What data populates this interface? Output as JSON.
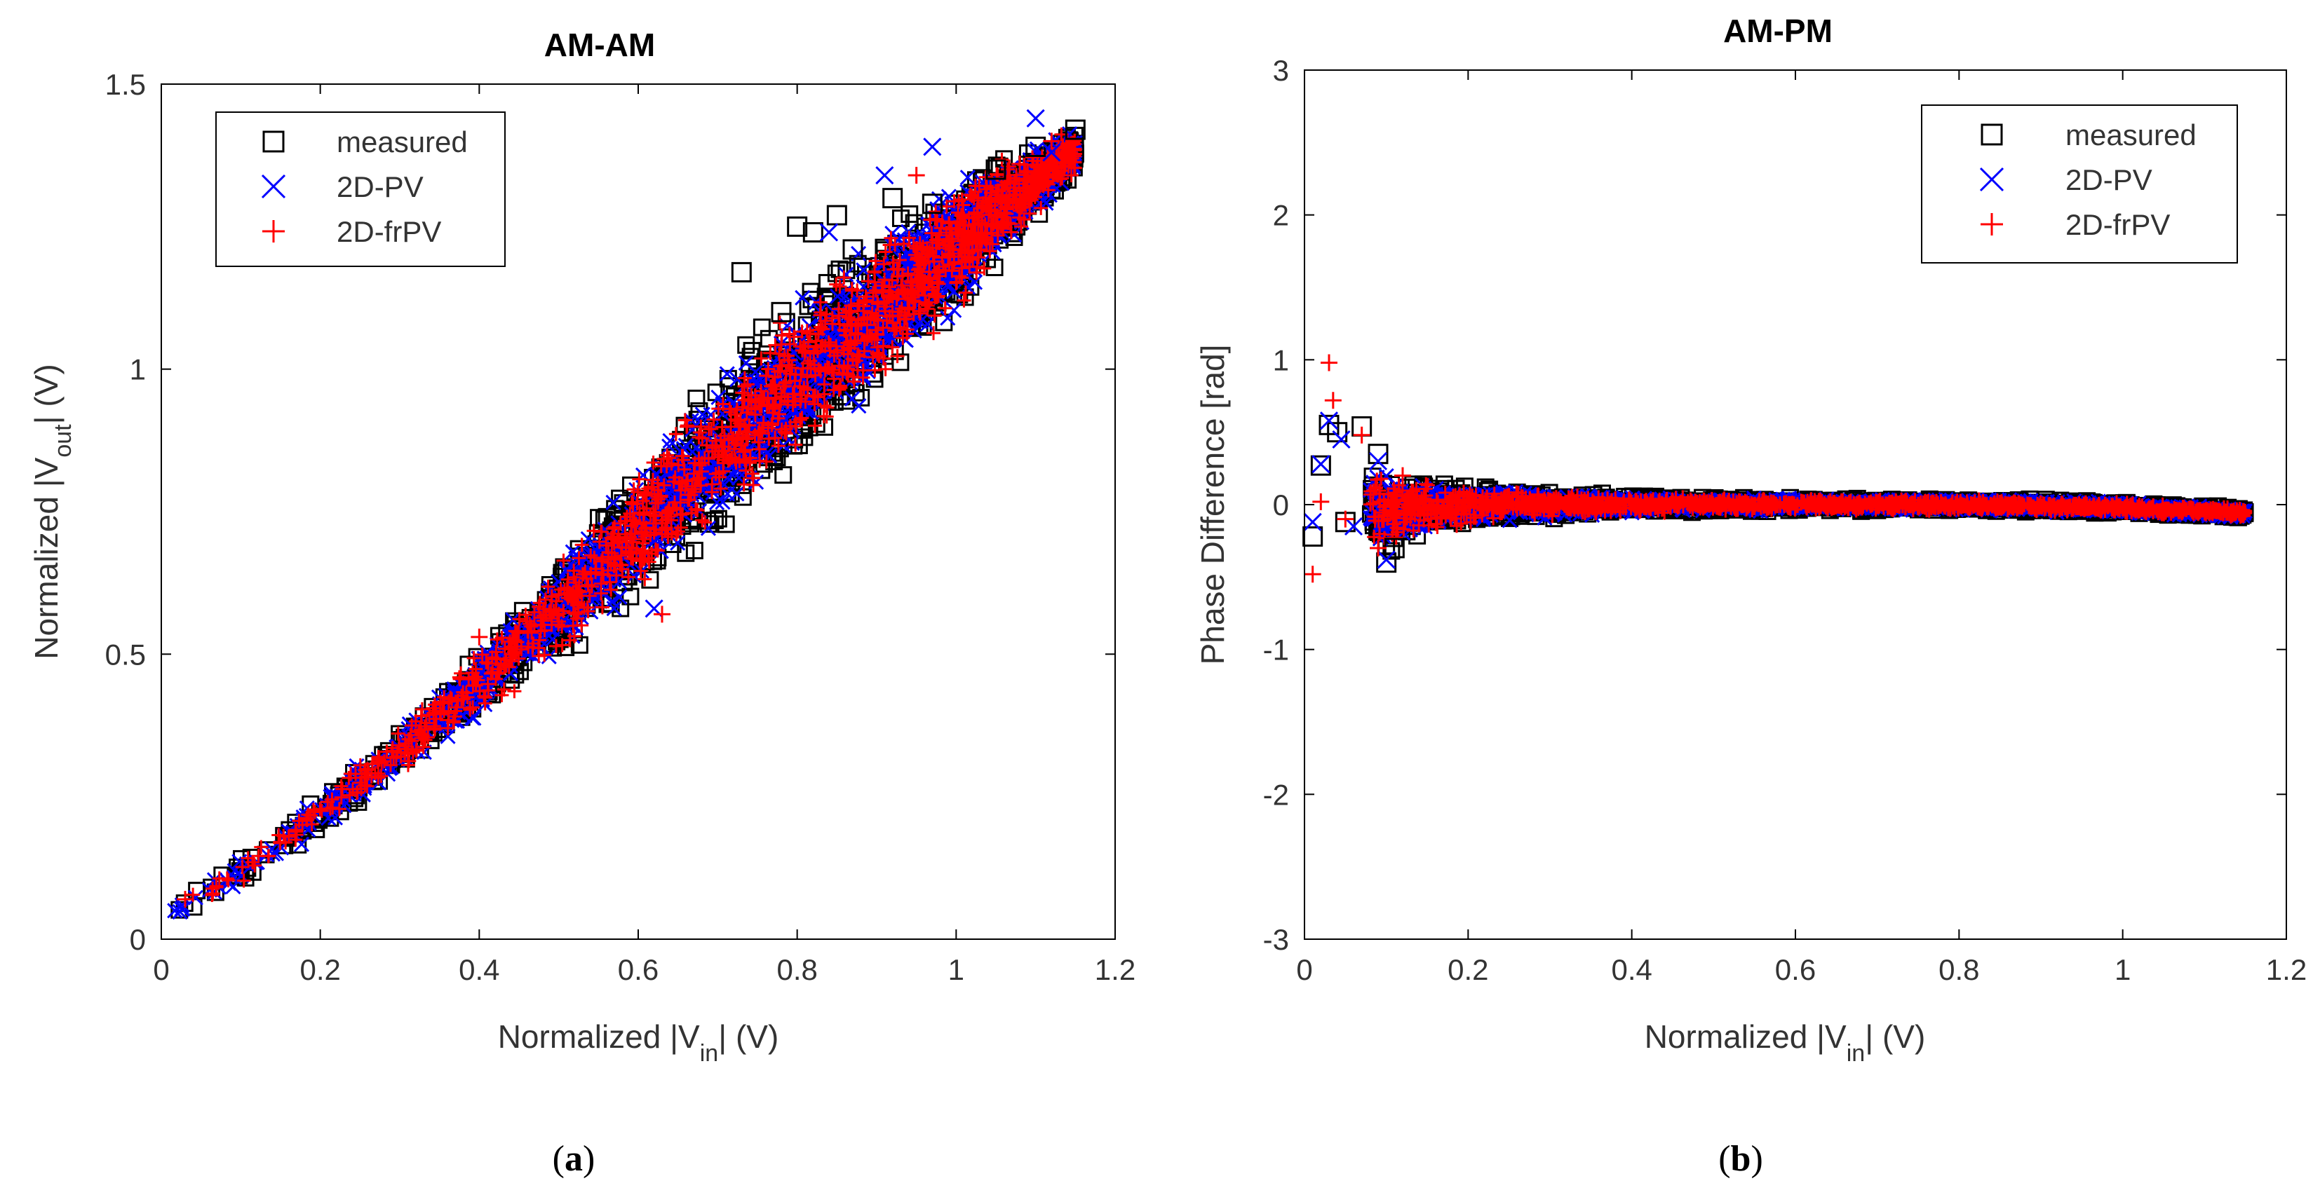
{
  "chart_data": [
    {
      "id": "a",
      "type": "scatter",
      "title": "AM-AM",
      "xlabel": {
        "prefix": "Normalized |V",
        "sub": "in",
        "suffix": "| (V)"
      },
      "ylabel": {
        "prefix": "Normalized |V",
        "sub": "out",
        "suffix": "| (V)"
      },
      "xlim": [
        0,
        1.2
      ],
      "ylim": [
        0,
        1.5
      ],
      "xticks": [
        0,
        0.2,
        0.4,
        0.6,
        0.8,
        1,
        1.2
      ],
      "yticks": [
        0,
        0.5,
        1,
        1.5
      ],
      "xtick_labels": [
        "0",
        "0.2",
        "0.4",
        "0.6",
        "0.8",
        "1",
        "1.2"
      ],
      "ytick_labels": [
        "0",
        "0.5",
        "1",
        "1.5"
      ],
      "legend_position": "top-left",
      "legend": [
        {
          "label": "measured",
          "marker": "square",
          "color": "#000000"
        },
        {
          "label": "2D-PV",
          "marker": "x",
          "color": "#0000ff"
        },
        {
          "label": "2D-frPV",
          "marker": "plus",
          "color": "#ff0000"
        }
      ],
      "trend": {
        "x": [
          0.0,
          0.1,
          0.2,
          0.3,
          0.4,
          0.5,
          0.6,
          0.7,
          0.8,
          0.9,
          1.0,
          1.1,
          1.15
        ],
        "y_center": [
          0.03,
          0.12,
          0.22,
          0.33,
          0.45,
          0.58,
          0.72,
          0.85,
          0.98,
          1.1,
          1.22,
          1.33,
          1.38
        ],
        "y_spread": [
          0.02,
          0.03,
          0.04,
          0.05,
          0.07,
          0.1,
          0.13,
          0.16,
          0.17,
          0.16,
          0.13,
          0.07,
          0.05
        ]
      },
      "series": [
        {
          "name": "measured",
          "x": [
            0.73,
            0.8,
            0.82,
            0.85,
            0.92,
            0.97,
            1.05,
            1.1,
            1.15,
            0.87,
            0.78
          ],
          "y": [
            1.17,
            1.25,
            1.24,
            1.27,
            1.3,
            1.29,
            1.35,
            1.39,
            1.42,
            1.21,
            1.1
          ]
        },
        {
          "name": "2D-PV",
          "x": [
            0.84,
            0.91,
            0.97,
            1.1,
            1.12,
            0.62
          ],
          "y": [
            1.24,
            1.34,
            1.39,
            1.44,
            1.38,
            0.58
          ]
        },
        {
          "name": "2D-frPV",
          "x": [
            0.63,
            0.4,
            0.95,
            1.08,
            1.12,
            0.03
          ],
          "y": [
            0.57,
            0.53,
            1.34,
            1.36,
            1.4,
            0.07
          ]
        }
      ],
      "caption": "a"
    },
    {
      "id": "b",
      "type": "scatter",
      "title": "AM-PM",
      "xlabel": {
        "prefix": "Normalized |V",
        "sub": "in",
        "suffix": "| (V)"
      },
      "ylabel": {
        "prefix": "Phase Difference [rad]",
        "sub": "",
        "suffix": ""
      },
      "xlim": [
        0,
        1.2
      ],
      "ylim": [
        -3,
        3
      ],
      "xticks": [
        0,
        0.2,
        0.4,
        0.6,
        0.8,
        1,
        1.2
      ],
      "yticks": [
        -3,
        -2,
        -1,
        0,
        1,
        2,
        3
      ],
      "xtick_labels": [
        "0",
        "0.2",
        "0.4",
        "0.6",
        "0.8",
        "1",
        "1.2"
      ],
      "ytick_labels": [
        "-3",
        "-2",
        "-1",
        "0",
        "1",
        "2",
        "3"
      ],
      "legend_position": "top-right",
      "legend": [
        {
          "label": "measured",
          "marker": "square",
          "color": "#000000"
        },
        {
          "label": "2D-PV",
          "marker": "x",
          "color": "#0000ff"
        },
        {
          "label": "2D-frPV",
          "marker": "plus",
          "color": "#ff0000"
        }
      ],
      "trend": {
        "x": [
          0.08,
          0.1,
          0.15,
          0.2,
          0.3,
          0.4,
          0.6,
          0.8,
          1.0,
          1.15
        ],
        "y_center": [
          0.0,
          -0.05,
          -0.02,
          0.0,
          0.0,
          0.0,
          0.0,
          0.0,
          -0.02,
          -0.06
        ],
        "y_spread": [
          0.35,
          0.3,
          0.22,
          0.16,
          0.1,
          0.07,
          0.05,
          0.05,
          0.05,
          0.04
        ]
      },
      "series": [
        {
          "name": "measured",
          "x": [
            0.01,
            0.02,
            0.03,
            0.04,
            0.05,
            0.07,
            0.09,
            0.1,
            0.11
          ],
          "y": [
            -0.22,
            0.27,
            0.55,
            0.5,
            -0.12,
            0.54,
            0.35,
            -0.4,
            -0.3
          ]
        },
        {
          "name": "2D-PV",
          "x": [
            0.01,
            0.02,
            0.03,
            0.045,
            0.06,
            0.09,
            0.1
          ],
          "y": [
            -0.12,
            0.28,
            0.58,
            0.45,
            -0.15,
            0.3,
            -0.38
          ]
        },
        {
          "name": "2D-frPV",
          "x": [
            0.01,
            0.02,
            0.03,
            0.035,
            0.05,
            0.07,
            0.09,
            0.12
          ],
          "y": [
            -0.48,
            0.02,
            0.98,
            0.72,
            -0.1,
            0.48,
            -0.3,
            0.2
          ]
        }
      ],
      "caption": "b"
    }
  ]
}
